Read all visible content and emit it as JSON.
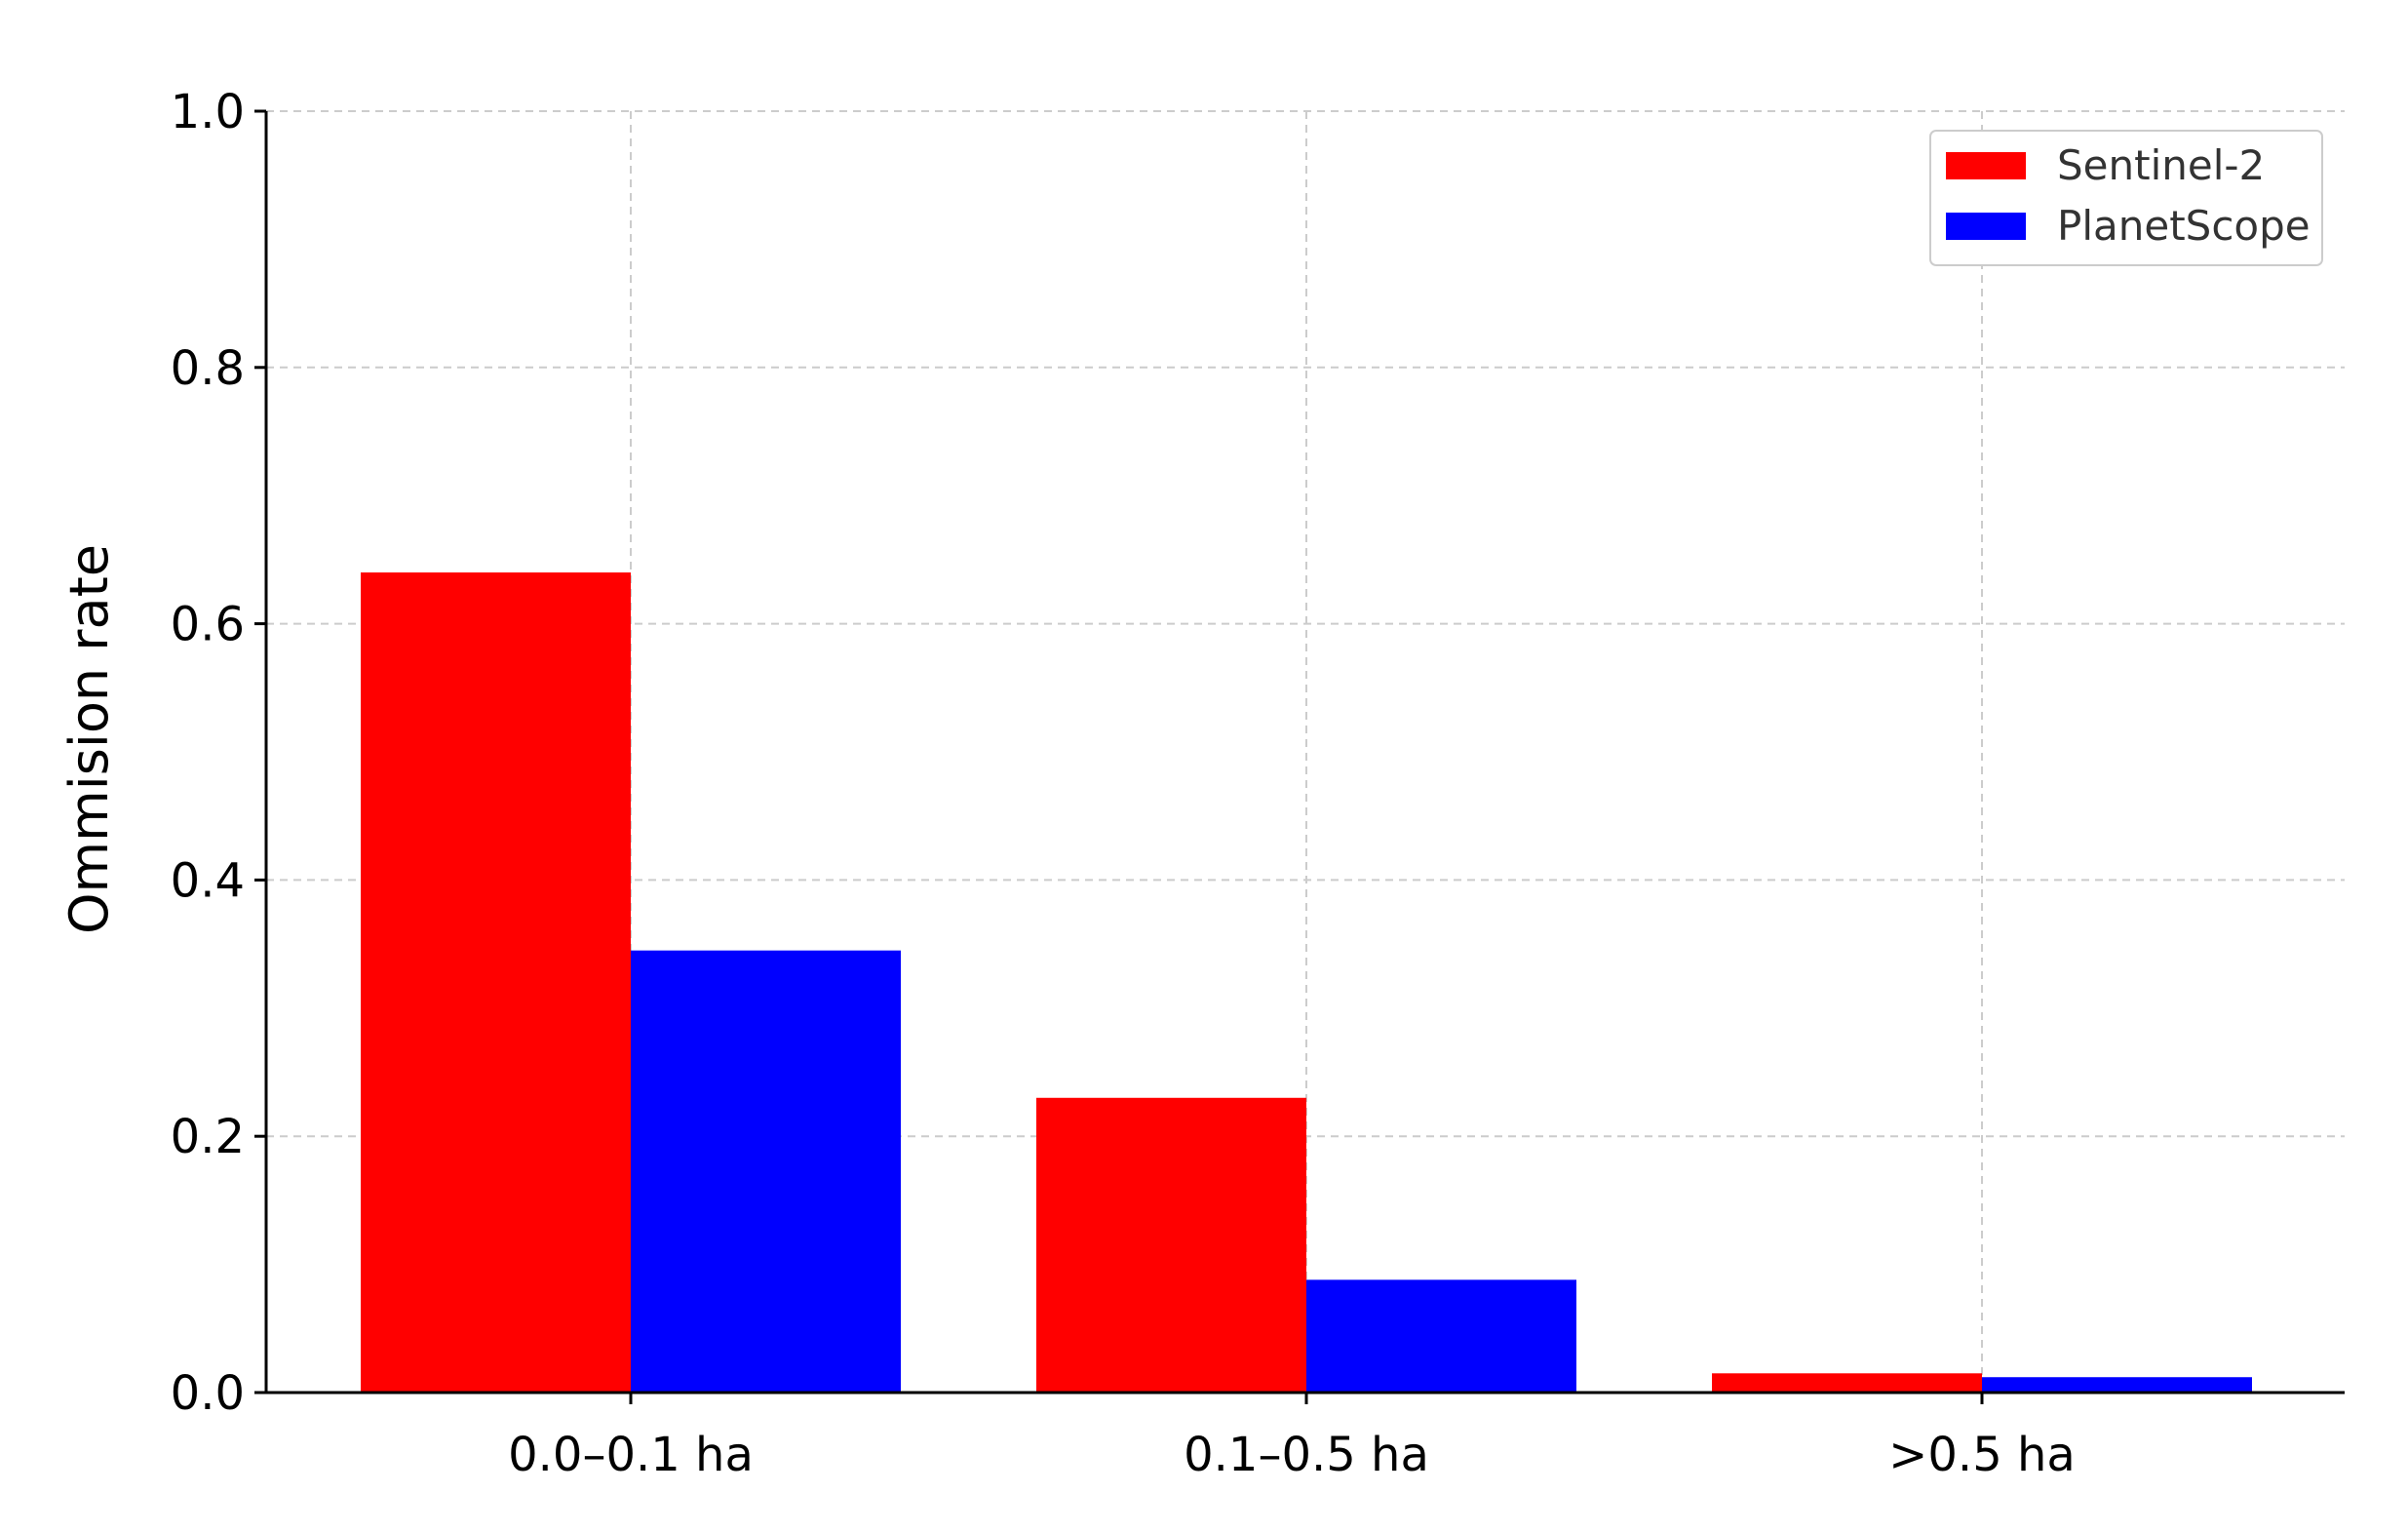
{
  "chart_data": {
    "type": "bar",
    "categories": [
      "0.0–0.1 ha",
      "0.1–0.5 ha",
      ">0.5 ha"
    ],
    "series": [
      {
        "name": "Sentinel-2",
        "color": "#ff0000",
        "values": [
          0.64,
          0.23,
          0.015
        ]
      },
      {
        "name": "PlanetScope",
        "color": "#0000ff",
        "values": [
          0.345,
          0.088,
          0.012
        ]
      }
    ],
    "xlabel": "",
    "ylabel": "Ommision rate",
    "ylim": [
      0,
      1.0
    ],
    "yticks": [
      0.0,
      0.2,
      0.4,
      0.6,
      0.8,
      1.0
    ],
    "ytick_labels": [
      "0.0",
      "0.2",
      "0.4",
      "0.6",
      "0.8",
      "1.0"
    ],
    "grid": true,
    "legend_position": "top-right"
  }
}
